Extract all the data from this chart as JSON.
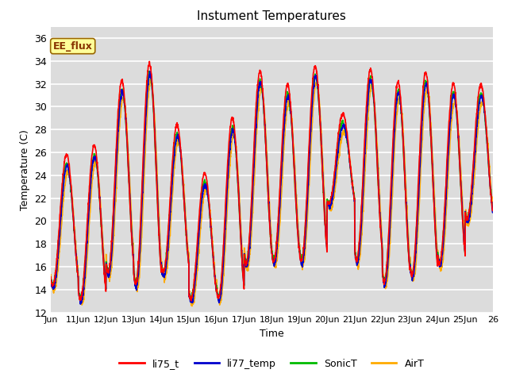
{
  "title": "Instument Temperatures",
  "xlabel": "Time",
  "ylabel": "Temperature (C)",
  "ylim": [
    12,
    37
  ],
  "xlim": [
    0,
    16
  ],
  "bg_color": "#dcdcdc",
  "grid_color": "white",
  "series": {
    "li75_t": {
      "color": "#ff0000",
      "lw": 1.2
    },
    "li77_temp": {
      "color": "#0000cc",
      "lw": 1.2
    },
    "SonicT": {
      "color": "#00bb00",
      "lw": 1.2
    },
    "AirT": {
      "color": "#ffaa00",
      "lw": 1.2
    }
  },
  "xtick_labels": [
    "Jun",
    "11Jun",
    "12Jun",
    "13Jun",
    "14Jun",
    "15Jun",
    "16Jun",
    "17Jun",
    "18Jun",
    "19Jun",
    "20Jun",
    "21Jun",
    "22Jun",
    "23Jun",
    "24Jun",
    "25Jun",
    "26"
  ],
  "annotation": {
    "text": "EE_flux",
    "facecolor": "#ffff99",
    "edgecolor": "#996600",
    "textcolor": "#883300",
    "fontsize": 9,
    "fontweight": "bold"
  },
  "day_peaks": [
    25.8,
    26.6,
    32.3,
    33.8,
    28.4,
    24.2,
    29.0,
    33.1,
    31.9,
    33.6,
    29.4,
    33.3,
    32.2,
    33.0,
    32.0,
    31.9
  ],
  "day_mins": [
    14.4,
    13.2,
    15.5,
    14.5,
    15.5,
    13.2,
    13.3,
    16.3,
    16.5,
    16.5,
    21.5,
    16.6,
    14.7,
    15.3,
    16.3,
    20.2
  ],
  "peak_hour": 0.58,
  "min_hour": 0.25
}
